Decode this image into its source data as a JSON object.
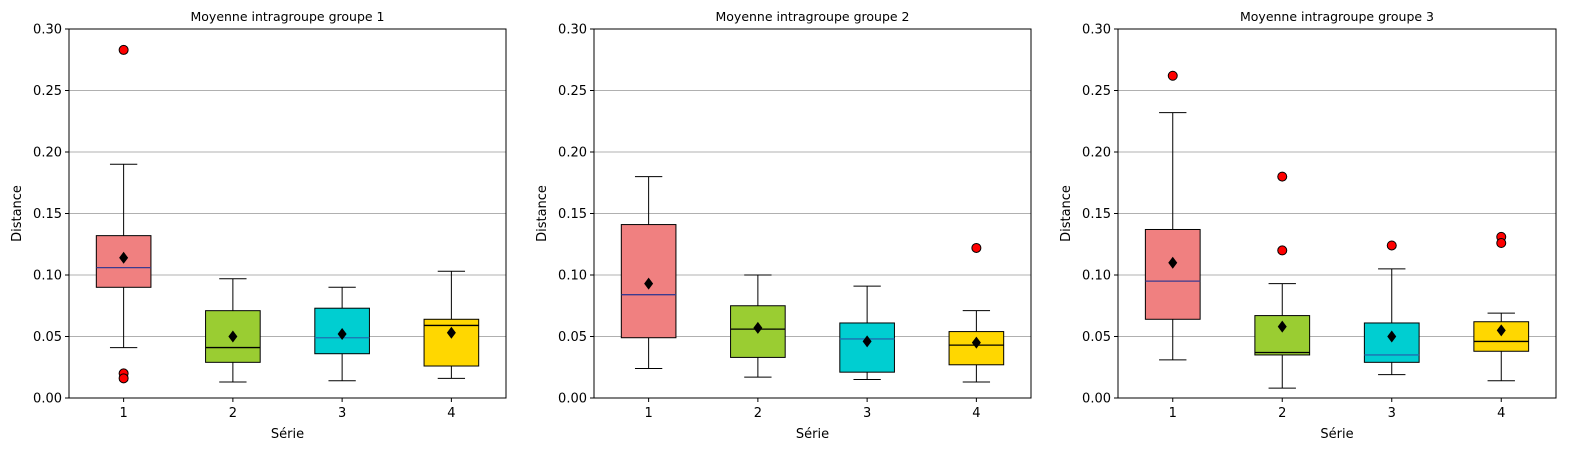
{
  "chart_data": [
    {
      "type": "boxplot",
      "title": "Moyenne intragroupe groupe 1",
      "xlabel": "Série",
      "ylabel": "Distance",
      "ylim": [
        0,
        0.3
      ],
      "yticks": [
        "0.00",
        "0.05",
        "0.10",
        "0.15",
        "0.20",
        "0.25",
        "0.30"
      ],
      "grid": "y",
      "categories": [
        "1",
        "2",
        "3",
        "4"
      ],
      "boxes": [
        {
          "whislo": 0.041,
          "q1": 0.09,
          "med": 0.106,
          "q3": 0.132,
          "whishi": 0.19,
          "mean": 0.114,
          "fliers": [
            0.283,
            0.02,
            0.016
          ]
        },
        {
          "whislo": 0.013,
          "q1": 0.029,
          "med": 0.041,
          "q3": 0.071,
          "whishi": 0.097,
          "mean": 0.05,
          "fliers": []
        },
        {
          "whislo": 0.014,
          "q1": 0.036,
          "med": 0.049,
          "q3": 0.073,
          "whishi": 0.09,
          "mean": 0.052,
          "fliers": []
        },
        {
          "whislo": 0.016,
          "q1": 0.026,
          "med": 0.059,
          "q3": 0.064,
          "whishi": 0.103,
          "mean": 0.053,
          "fliers": []
        }
      ]
    },
    {
      "type": "boxplot",
      "title": "Moyenne intragroupe groupe 2",
      "xlabel": "Série",
      "ylabel": "Distance",
      "ylim": [
        0,
        0.3
      ],
      "yticks": [
        "0.00",
        "0.05",
        "0.10",
        "0.15",
        "0.20",
        "0.25",
        "0.30"
      ],
      "grid": "y",
      "categories": [
        "1",
        "2",
        "3",
        "4"
      ],
      "boxes": [
        {
          "whislo": 0.024,
          "q1": 0.049,
          "med": 0.084,
          "q3": 0.141,
          "whishi": 0.18,
          "mean": 0.093,
          "fliers": []
        },
        {
          "whislo": 0.017,
          "q1": 0.033,
          "med": 0.056,
          "q3": 0.075,
          "whishi": 0.1,
          "mean": 0.057,
          "fliers": []
        },
        {
          "whislo": 0.015,
          "q1": 0.021,
          "med": 0.048,
          "q3": 0.061,
          "whishi": 0.091,
          "mean": 0.046,
          "fliers": []
        },
        {
          "whislo": 0.013,
          "q1": 0.027,
          "med": 0.043,
          "q3": 0.054,
          "whishi": 0.071,
          "mean": 0.045,
          "fliers": [
            0.122
          ]
        }
      ]
    },
    {
      "type": "boxplot",
      "title": "Moyenne intragroupe groupe 3",
      "xlabel": "Série",
      "ylabel": "Distance",
      "ylim": [
        0,
        0.3
      ],
      "yticks": [
        "0.00",
        "0.05",
        "0.10",
        "0.15",
        "0.20",
        "0.25",
        "0.30"
      ],
      "grid": "y",
      "categories": [
        "1",
        "2",
        "3",
        "4"
      ],
      "boxes": [
        {
          "whislo": 0.031,
          "q1": 0.064,
          "med": 0.095,
          "q3": 0.137,
          "whishi": 0.232,
          "mean": 0.11,
          "fliers": [
            0.262
          ]
        },
        {
          "whislo": 0.008,
          "q1": 0.035,
          "med": 0.037,
          "q3": 0.067,
          "whishi": 0.093,
          "mean": 0.058,
          "fliers": [
            0.18,
            0.12
          ]
        },
        {
          "whislo": 0.019,
          "q1": 0.029,
          "med": 0.035,
          "q3": 0.061,
          "whishi": 0.105,
          "mean": 0.05,
          "fliers": [
            0.124
          ]
        },
        {
          "whislo": 0.014,
          "q1": 0.038,
          "med": 0.046,
          "q3": 0.062,
          "whishi": 0.069,
          "mean": 0.055,
          "fliers": [
            0.131,
            0.126
          ]
        }
      ]
    }
  ],
  "style": {
    "box_colors": [
      "#f08080",
      "#9acd32",
      "#00ced1",
      "#ffd700"
    ],
    "median_colors": [
      "#3b3b8f",
      "#000000",
      "#1f6fb0",
      "#000000"
    ],
    "flier_color": "#ff0000",
    "mean_color": "#000000",
    "grid_color": "#b0b0b0"
  }
}
